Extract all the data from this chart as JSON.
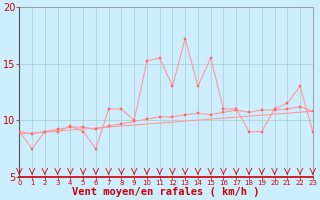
{
  "xlabel": "Vent moyen/en rafales ( km/h )",
  "background_color": "#cceeff",
  "grid_color": "#aacccc",
  "line_color_spiky": "#ff9999",
  "line_color_smooth": "#ff9999",
  "line_color_trend": "#ff9999",
  "marker_color": "#ff6666",
  "xmin": 0,
  "xmax": 23,
  "ymin": 5,
  "ymax": 20,
  "yticks": [
    5,
    10,
    15,
    20
  ],
  "xticks": [
    0,
    1,
    2,
    3,
    4,
    5,
    6,
    7,
    8,
    9,
    10,
    11,
    12,
    13,
    14,
    15,
    16,
    17,
    18,
    19,
    20,
    21,
    22,
    23
  ],
  "spiky_x": [
    0,
    1,
    2,
    3,
    4,
    5,
    6,
    7,
    8,
    9,
    10,
    11,
    12,
    13,
    14,
    15,
    16,
    17,
    18,
    19,
    20,
    21,
    22,
    23
  ],
  "spiky_y": [
    9.0,
    7.5,
    9.0,
    9.0,
    9.5,
    9.0,
    7.5,
    11.0,
    11.0,
    10.0,
    15.2,
    15.5,
    13.0,
    17.2,
    13.0,
    15.5,
    11.0,
    11.0,
    9.0,
    9.0,
    11.0,
    11.5,
    13.0,
    9.0
  ],
  "smooth_x": [
    0,
    1,
    2,
    3,
    4,
    5,
    6,
    7,
    8,
    9,
    10,
    11,
    12,
    13,
    14,
    15,
    16,
    17,
    18,
    19,
    20,
    21,
    22,
    23
  ],
  "smooth_y": [
    9.0,
    8.8,
    9.0,
    9.2,
    9.4,
    9.4,
    9.2,
    9.5,
    9.7,
    9.9,
    10.1,
    10.3,
    10.3,
    10.5,
    10.6,
    10.5,
    10.7,
    10.9,
    10.7,
    10.9,
    10.9,
    11.0,
    11.2,
    10.8
  ],
  "trend_x": [
    0,
    23
  ],
  "trend_y": [
    8.8,
    10.8
  ],
  "xlabel_color": "#cc0000",
  "tick_color": "#cc0000",
  "xlabel_fontsize": 7.5,
  "ytick_fontsize": 7,
  "xtick_fontsize": 5.0,
  "spine_bottom_color": "#cc0000",
  "spine_other_color": "#888888"
}
